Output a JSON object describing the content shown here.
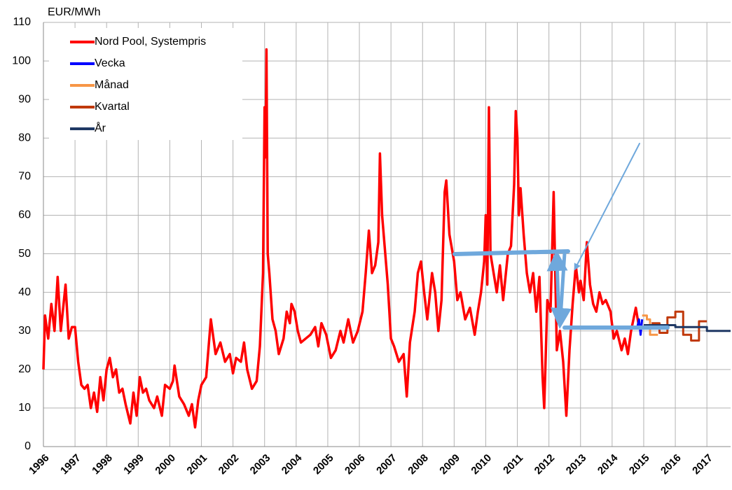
{
  "chart_data": {
    "type": "line",
    "y_label": "EUR/MWh",
    "xlim": [
      1996,
      2017.75
    ],
    "xticks": [
      1996,
      1997,
      1998,
      1999,
      2000,
      2001,
      2002,
      2003,
      2004,
      2005,
      2006,
      2007,
      2008,
      2009,
      2010,
      2011,
      2012,
      2013,
      2014,
      2015,
      2016,
      2017
    ],
    "ylim": [
      0,
      110
    ],
    "yticks": [
      0,
      10,
      20,
      30,
      40,
      50,
      60,
      70,
      80,
      90,
      100,
      110
    ],
    "grid": true,
    "legend": "upper left",
    "series": [
      {
        "name": "Nord Pool, Systempris",
        "color": "#ff0000",
        "x": [
          1996.0,
          1996.05,
          1996.15,
          1996.25,
          1996.35,
          1996.45,
          1996.55,
          1996.7,
          1996.8,
          1996.9,
          1997.0,
          1997.1,
          1997.2,
          1997.3,
          1997.4,
          1997.5,
          1997.6,
          1997.7,
          1997.8,
          1997.9,
          1998.0,
          1998.1,
          1998.2,
          1998.3,
          1998.4,
          1998.5,
          1998.6,
          1998.75,
          1998.85,
          1998.95,
          1999.05,
          1999.15,
          1999.25,
          1999.35,
          1999.5,
          1999.6,
          1999.75,
          1999.85,
          2000.0,
          2000.1,
          2000.15,
          2000.3,
          2000.45,
          2000.6,
          2000.7,
          2000.8,
          2000.9,
          2001.0,
          2001.15,
          2001.3,
          2001.45,
          2001.6,
          2001.75,
          2001.9,
          2002.0,
          2002.1,
          2002.25,
          2002.35,
          2002.45,
          2002.6,
          2002.75,
          2002.85,
          2002.95,
          2003.0,
          2003.03,
          2003.06,
          2003.1,
          2003.15,
          2003.25,
          2003.35,
          2003.45,
          2003.6,
          2003.7,
          2003.8,
          2003.85,
          2003.95,
          2004.05,
          2004.15,
          2004.3,
          2004.45,
          2004.6,
          2004.7,
          2004.8,
          2004.95,
          2005.1,
          2005.25,
          2005.4,
          2005.5,
          2005.65,
          2005.8,
          2005.95,
          2006.1,
          2006.2,
          2006.3,
          2006.4,
          2006.5,
          2006.6,
          2006.65,
          2006.72,
          2006.8,
          2006.9,
          2007.0,
          2007.1,
          2007.25,
          2007.4,
          2007.5,
          2007.6,
          2007.75,
          2007.85,
          2007.95,
          2008.05,
          2008.15,
          2008.3,
          2008.4,
          2008.5,
          2008.6,
          2008.7,
          2008.75,
          2008.85,
          2009.0,
          2009.1,
          2009.2,
          2009.35,
          2009.5,
          2009.65,
          2009.75,
          2009.85,
          2009.95,
          2010.0,
          2010.05,
          2010.1,
          2010.15,
          2010.25,
          2010.35,
          2010.45,
          2010.55,
          2010.7,
          2010.8,
          2010.9,
          2010.95,
          2011.0,
          2011.05,
          2011.1,
          2011.2,
          2011.3,
          2011.4,
          2011.5,
          2011.6,
          2011.7,
          2011.8,
          2011.85,
          2011.95,
          2012.05,
          2012.15,
          2012.25,
          2012.35,
          2012.45,
          2012.55,
          2012.65,
          2012.75,
          2012.85,
          2012.95,
          2013.0,
          2013.1,
          2013.2,
          2013.3,
          2013.4,
          2013.5,
          2013.6,
          2013.7,
          2013.8,
          2013.95,
          2014.05,
          2014.15,
          2014.3,
          2014.4,
          2014.5,
          2014.6,
          2014.75,
          2014.85,
          2014.92
        ],
        "values": [
          20,
          34,
          28,
          37,
          30,
          44,
          30,
          42,
          28,
          31,
          31,
          22,
          16,
          15,
          16,
          10,
          14,
          9,
          18,
          12,
          20,
          23,
          18,
          20,
          14,
          15,
          11,
          6,
          14,
          8,
          18,
          14,
          15,
          12,
          10,
          13,
          8,
          16,
          15,
          17,
          21,
          13,
          11,
          8,
          11,
          5,
          12,
          16,
          18,
          33,
          24,
          27,
          22,
          24,
          19,
          23,
          22,
          27,
          20,
          15,
          17,
          26,
          45,
          88,
          75,
          103,
          50,
          45,
          33,
          30,
          24,
          28,
          35,
          32,
          37,
          35,
          30,
          27,
          28,
          29,
          31,
          26,
          32,
          29,
          23,
          25,
          30,
          27,
          33,
          27,
          30,
          35,
          45,
          56,
          45,
          47,
          53,
          76,
          60,
          52,
          42,
          28,
          26,
          22,
          24,
          13,
          27,
          35,
          45,
          48,
          40,
          33,
          45,
          40,
          30,
          38,
          66,
          69,
          55,
          48,
          38,
          40,
          33,
          36,
          29,
          35,
          40,
          48,
          60,
          42,
          88,
          50,
          45,
          40,
          47,
          38,
          50,
          52,
          68,
          87,
          80,
          60,
          67,
          55,
          45,
          40,
          45,
          35,
          44,
          18,
          10,
          38,
          35,
          66,
          25,
          30,
          22,
          8,
          25,
          37,
          47,
          40,
          43,
          38,
          53,
          42,
          37,
          35,
          40,
          37,
          38,
          35,
          28,
          30,
          25,
          28,
          24,
          30,
          36,
          31,
          31
        ]
      },
      {
        "name": "Vecka",
        "color": "#0000ff",
        "x": [
          2014.8,
          2014.85,
          2014.9,
          2014.95
        ],
        "values": [
          31,
          33,
          29,
          33
        ]
      },
      {
        "name": "Månad",
        "color": "#f79646",
        "x": [
          2014.95,
          2015.1,
          2015.1,
          2015.2,
          2015.2,
          2015.45
        ],
        "values": [
          34,
          34,
          33,
          33,
          29,
          29
        ]
      },
      {
        "name": "Kvartal",
        "color": "#c0390b",
        "x": [
          2015.25,
          2015.5,
          2015.5,
          2015.75,
          2015.75,
          2016.0,
          2016.0,
          2016.25,
          2016.25,
          2016.5,
          2016.5,
          2016.75,
          2016.75,
          2017.0
        ],
        "values": [
          32,
          32,
          29.5,
          29.5,
          33.5,
          33.5,
          35,
          35,
          29,
          29,
          27.5,
          27.5,
          32.5,
          32.5
        ]
      },
      {
        "name": "År",
        "color": "#1f3864",
        "x": [
          2015.0,
          2016.0,
          2016.0,
          2017.0,
          2017.0,
          2017.75
        ],
        "values": [
          31.5,
          31.5,
          31,
          31,
          30,
          30
        ]
      }
    ]
  }
}
